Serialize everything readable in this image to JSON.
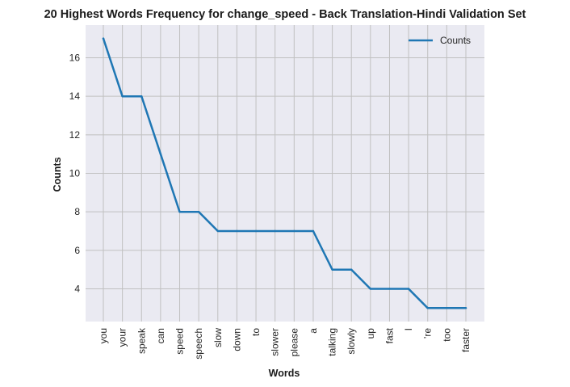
{
  "chart_data": {
    "type": "line",
    "title": "20 Highest Words Frequency for change_speed - Back Translation-Hindi Validation Set",
    "xlabel": "Words",
    "ylabel": "Counts",
    "categories": [
      "you",
      "your",
      "speak",
      "can",
      "speed",
      "speech",
      "slow",
      "down",
      "to",
      "slower",
      "please",
      "a",
      "talking",
      "slowly",
      "up",
      "fast",
      "I",
      "'re",
      "too",
      "faster"
    ],
    "series": [
      {
        "name": "Counts",
        "values": [
          17,
          14,
          14,
          11,
          8,
          8,
          7,
          7,
          7,
          7,
          7,
          7,
          5,
          5,
          4,
          4,
          4,
          3,
          3,
          3
        ],
        "color": "#1f77b4"
      }
    ],
    "ylim": [
      2.3,
      17.7
    ],
    "yticks": [
      4,
      6,
      8,
      10,
      12,
      14,
      16
    ],
    "grid": true,
    "legend_position": "top-right",
    "background": "#eaeaf2",
    "grid_color": "#c0c0c0"
  }
}
